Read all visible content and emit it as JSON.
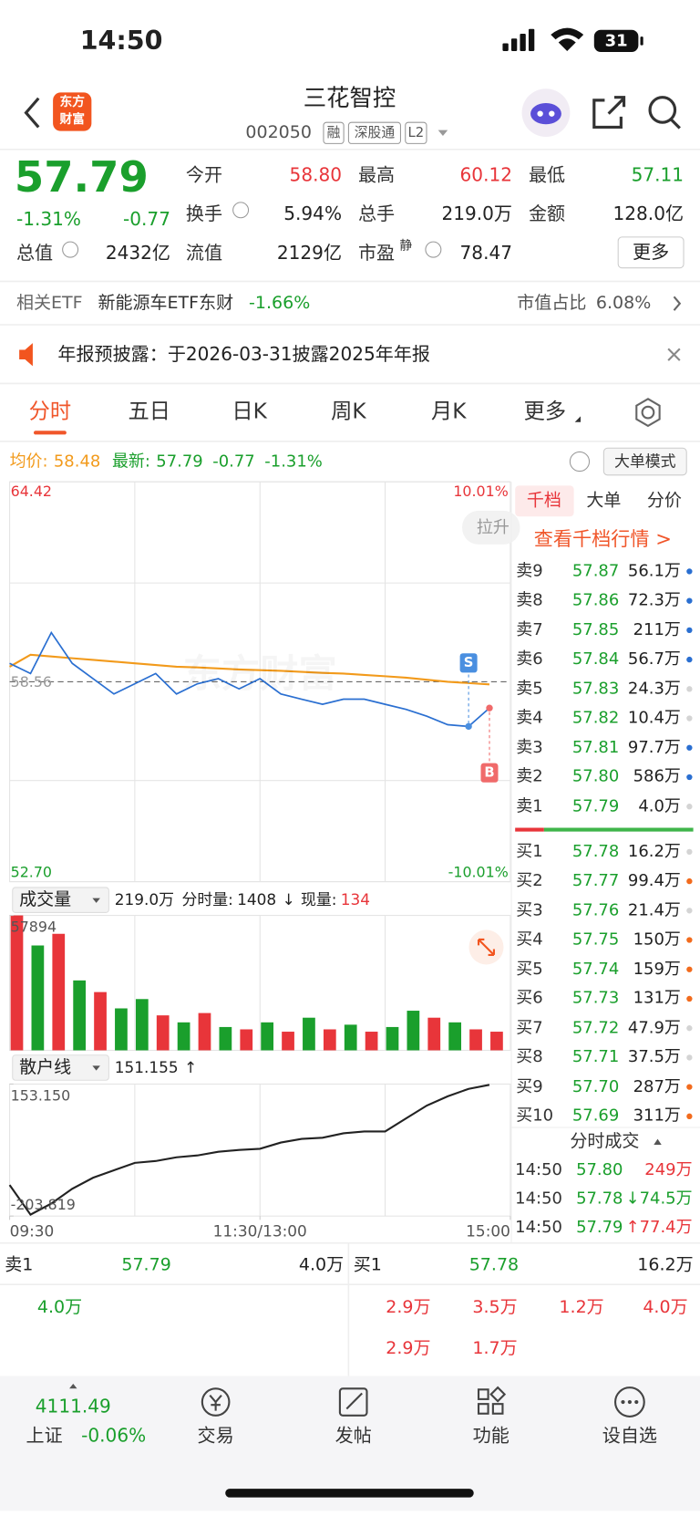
{
  "status_bar": {
    "time": "14:50",
    "battery": "31"
  },
  "header": {
    "logo": [
      "东方",
      "财富"
    ],
    "title": "三花智控",
    "code": "002050",
    "tags": [
      "融",
      "深股通",
      "L2"
    ]
  },
  "quote": {
    "price": "57.79",
    "change_pct": "-1.31%",
    "change": "-0.77",
    "fields": [
      {
        "label": "今开",
        "value": "58.80",
        "color": "#e8353a"
      },
      {
        "label": "最高",
        "value": "60.12",
        "color": "#e8353a"
      },
      {
        "label": "最低",
        "value": "57.11",
        "color": "#1a9f2c"
      },
      {
        "label": "换手",
        "value": "5.94%",
        "color": "#222222"
      },
      {
        "label": "总手",
        "value": "219.0万",
        "color": "#222222"
      },
      {
        "label": "金额",
        "value": "128.0亿",
        "color": "#222222"
      },
      {
        "label": "总值",
        "value": "2432亿",
        "color": "#222222"
      },
      {
        "label": "流值",
        "value": "2129亿",
        "color": "#222222"
      },
      {
        "label": "市盈",
        "value": "78.47",
        "color": "#222222"
      }
    ],
    "pe_tag": "静",
    "more": "更多"
  },
  "etf": {
    "label": "相关ETF",
    "name": "新能源车ETF东财",
    "change": "-1.66%",
    "share_label": "市值占比",
    "share": "6.08%"
  },
  "notice": {
    "text": "年报预披露：于2026-03-31披露2025年年报"
  },
  "tabs": {
    "items": [
      "分时",
      "五日",
      "日K",
      "周K",
      "月K",
      "更多"
    ],
    "active": 0
  },
  "summary": {
    "avg_label": "均价:",
    "avg": "58.48",
    "latest_label": "最新:",
    "latest": "57.79",
    "change": "-0.77",
    "pct": "-1.31%",
    "mode_button": "大单模式"
  },
  "price_chart": {
    "watermark": "东方财富",
    "tag": "拉升",
    "xlim": [
      0,
      240
    ],
    "xticks": [
      {
        "value": 0,
        "label": "09:30"
      },
      {
        "value": 120,
        "label": "11:30/13:00"
      },
      {
        "value": 240,
        "label": "15:00"
      }
    ],
    "ylim": [
      52.7,
      64.42
    ],
    "yticks": [
      {
        "value": 64.42,
        "label": "64.42"
      },
      58.56,
      {
        "value": 52.7,
        "label": "52.70"
      }
    ],
    "y2lim": [
      -10.01,
      10.01
    ],
    "y2ticks": [
      {
        "value": 10.01,
        "label": "10.01%"
      },
      {
        "value": -10.01,
        "label": "-10.01%"
      }
    ],
    "x": [
      0,
      10,
      20,
      30,
      40,
      50,
      60,
      70,
      80,
      90,
      100,
      110,
      120,
      130,
      140,
      150,
      160,
      170,
      180,
      190,
      200,
      210,
      220,
      230
    ],
    "price": {
      "color": "#2a6fd1",
      "values": [
        59.1,
        58.8,
        60.0,
        59.1,
        58.65,
        58.2,
        58.5,
        58.8,
        58.2,
        58.5,
        58.65,
        58.35,
        58.65,
        58.2,
        58.05,
        57.9,
        58.05,
        58.05,
        57.9,
        57.75,
        57.55,
        57.3,
        57.25,
        57.79
      ]
    },
    "average": {
      "color": "#f29a1b",
      "values": [
        59.0,
        59.35,
        59.3,
        59.25,
        59.2,
        59.15,
        59.1,
        59.05,
        59.0,
        58.98,
        58.95,
        58.92,
        58.9,
        58.88,
        58.85,
        58.82,
        58.8,
        58.76,
        58.72,
        58.68,
        58.62,
        58.56,
        58.52,
        58.48
      ]
    },
    "signals": [
      {
        "label": "S",
        "x": 220,
        "color": "#4a8fe0"
      },
      {
        "label": "B",
        "x": 230,
        "color": "#f06a6a"
      }
    ]
  },
  "volume_chart": {
    "selector": "成交量",
    "total": "219.0万",
    "interval_label": "分时量:",
    "interval": "1408",
    "arrow": "↓",
    "current_label": "现量:",
    "current": "134",
    "ylim": [
      0,
      57894
    ],
    "yticks": [
      57894
    ],
    "values": [
      57894,
      45000,
      50000,
      30000,
      25000,
      18000,
      22000,
      15000,
      12000,
      16000,
      10000,
      9000,
      12000,
      8000,
      14000,
      9000,
      11000,
      8000,
      10000,
      17000,
      14000,
      12000,
      9000,
      8000
    ],
    "colors": [
      "#e8353a",
      "#1a9f2c",
      "#e8353a",
      "#1a9f2c",
      "#e8353a",
      "#1a9f2c",
      "#1a9f2c",
      "#e8353a",
      "#1a9f2c",
      "#e8353a",
      "#1a9f2c",
      "#e8353a",
      "#1a9f2c",
      "#e8353a",
      "#1a9f2c",
      "#e8353a",
      "#1a9f2c",
      "#e8353a",
      "#1a9f2c",
      "#1a9f2c",
      "#e8353a",
      "#1a9f2c",
      "#e8353a",
      "#e8353a"
    ]
  },
  "retail_chart": {
    "selector": "散户线",
    "current": "151.155",
    "arrow": "↑",
    "color": "#222222",
    "ylim": [
      -203.819,
      153.15
    ],
    "yticks": [
      {
        "value": 153.15,
        "label": "153.150"
      },
      -203.819
    ],
    "values": [
      -120,
      -200,
      -170,
      -130,
      -100,
      -80,
      -60,
      -55,
      -45,
      -40,
      -30,
      -25,
      -22,
      -5,
      5,
      8,
      20,
      25,
      25,
      60,
      95,
      120,
      140,
      151.155
    ]
  },
  "order_book": {
    "tabs": [
      "千档",
      "大单",
      "分价"
    ],
    "link": "查看千档行情 >",
    "asks": [
      {
        "label": "卖9",
        "price": "57.87",
        "volume": "56.1万",
        "dot": "#2a6fd1"
      },
      {
        "label": "卖8",
        "price": "57.86",
        "volume": "72.3万",
        "dot": "#2a6fd1"
      },
      {
        "label": "卖7",
        "price": "57.85",
        "volume": "211万",
        "dot": "#2a6fd1"
      },
      {
        "label": "卖6",
        "price": "57.84",
        "volume": "56.7万",
        "dot": "#2a6fd1"
      },
      {
        "label": "卖5",
        "price": "57.83",
        "volume": "24.3万",
        "dot": "#d4d4d4"
      },
      {
        "label": "卖4",
        "price": "57.82",
        "volume": "10.4万",
        "dot": "#d4d4d4"
      },
      {
        "label": "卖3",
        "price": "57.81",
        "volume": "97.7万",
        "dot": "#2a6fd1"
      },
      {
        "label": "卖2",
        "price": "57.80",
        "volume": "586万",
        "dot": "#2a6fd1"
      },
      {
        "label": "卖1",
        "price": "57.79",
        "volume": "4.0万",
        "dot": "#d4d4d4"
      }
    ],
    "bids": [
      {
        "label": "买1",
        "price": "57.78",
        "volume": "16.2万",
        "dot": "#d4d4d4"
      },
      {
        "label": "买2",
        "price": "57.77",
        "volume": "99.4万",
        "dot": "#f26b1d"
      },
      {
        "label": "买3",
        "price": "57.76",
        "volume": "21.4万",
        "dot": "#d4d4d4"
      },
      {
        "label": "买4",
        "price": "57.75",
        "volume": "150万",
        "dot": "#f26b1d"
      },
      {
        "label": "买5",
        "price": "57.74",
        "volume": "159万",
        "dot": "#f26b1d"
      },
      {
        "label": "买6",
        "price": "57.73",
        "volume": "131万",
        "dot": "#f26b1d"
      },
      {
        "label": "买7",
        "price": "57.72",
        "volume": "47.9万",
        "dot": "#d4d4d4"
      },
      {
        "label": "买8",
        "price": "57.71",
        "volume": "37.5万",
        "dot": "#d4d4d4"
      },
      {
        "label": "买9",
        "price": "57.70",
        "volume": "287万",
        "dot": "#f26b1d"
      },
      {
        "label": "买10",
        "price": "57.69",
        "volume": "311万",
        "dot": "#f26b1d"
      }
    ]
  },
  "trades": {
    "title": "分时成交",
    "rows": [
      {
        "time": "14:50",
        "price": "57.80",
        "volume": "249万",
        "color": "#e8353a"
      },
      {
        "time": "14:50",
        "price": "57.78",
        "arrow": "↓",
        "volume": "74.5万",
        "color": "#1a9f2c"
      },
      {
        "time": "14:50",
        "price": "57.79",
        "arrow": "↑",
        "volume": "77.4万",
        "color": "#e8353a"
      }
    ]
  },
  "level1": {
    "ask": {
      "label": "卖1",
      "price": "57.79",
      "volume": "4.0万"
    },
    "bid": {
      "label": "买1",
      "price": "57.78",
      "volume": "16.2万"
    },
    "ask_details": [
      "4.0万"
    ],
    "bid_details": [
      "2.9万",
      "3.5万",
      "1.2万",
      "4.0万",
      "2.9万",
      "1.7万"
    ]
  },
  "nav": {
    "index": {
      "value": "4111.49",
      "name": "上证",
      "change": "-0.06%"
    },
    "items": [
      "交易",
      "发帖",
      "功能",
      "设自选"
    ]
  }
}
